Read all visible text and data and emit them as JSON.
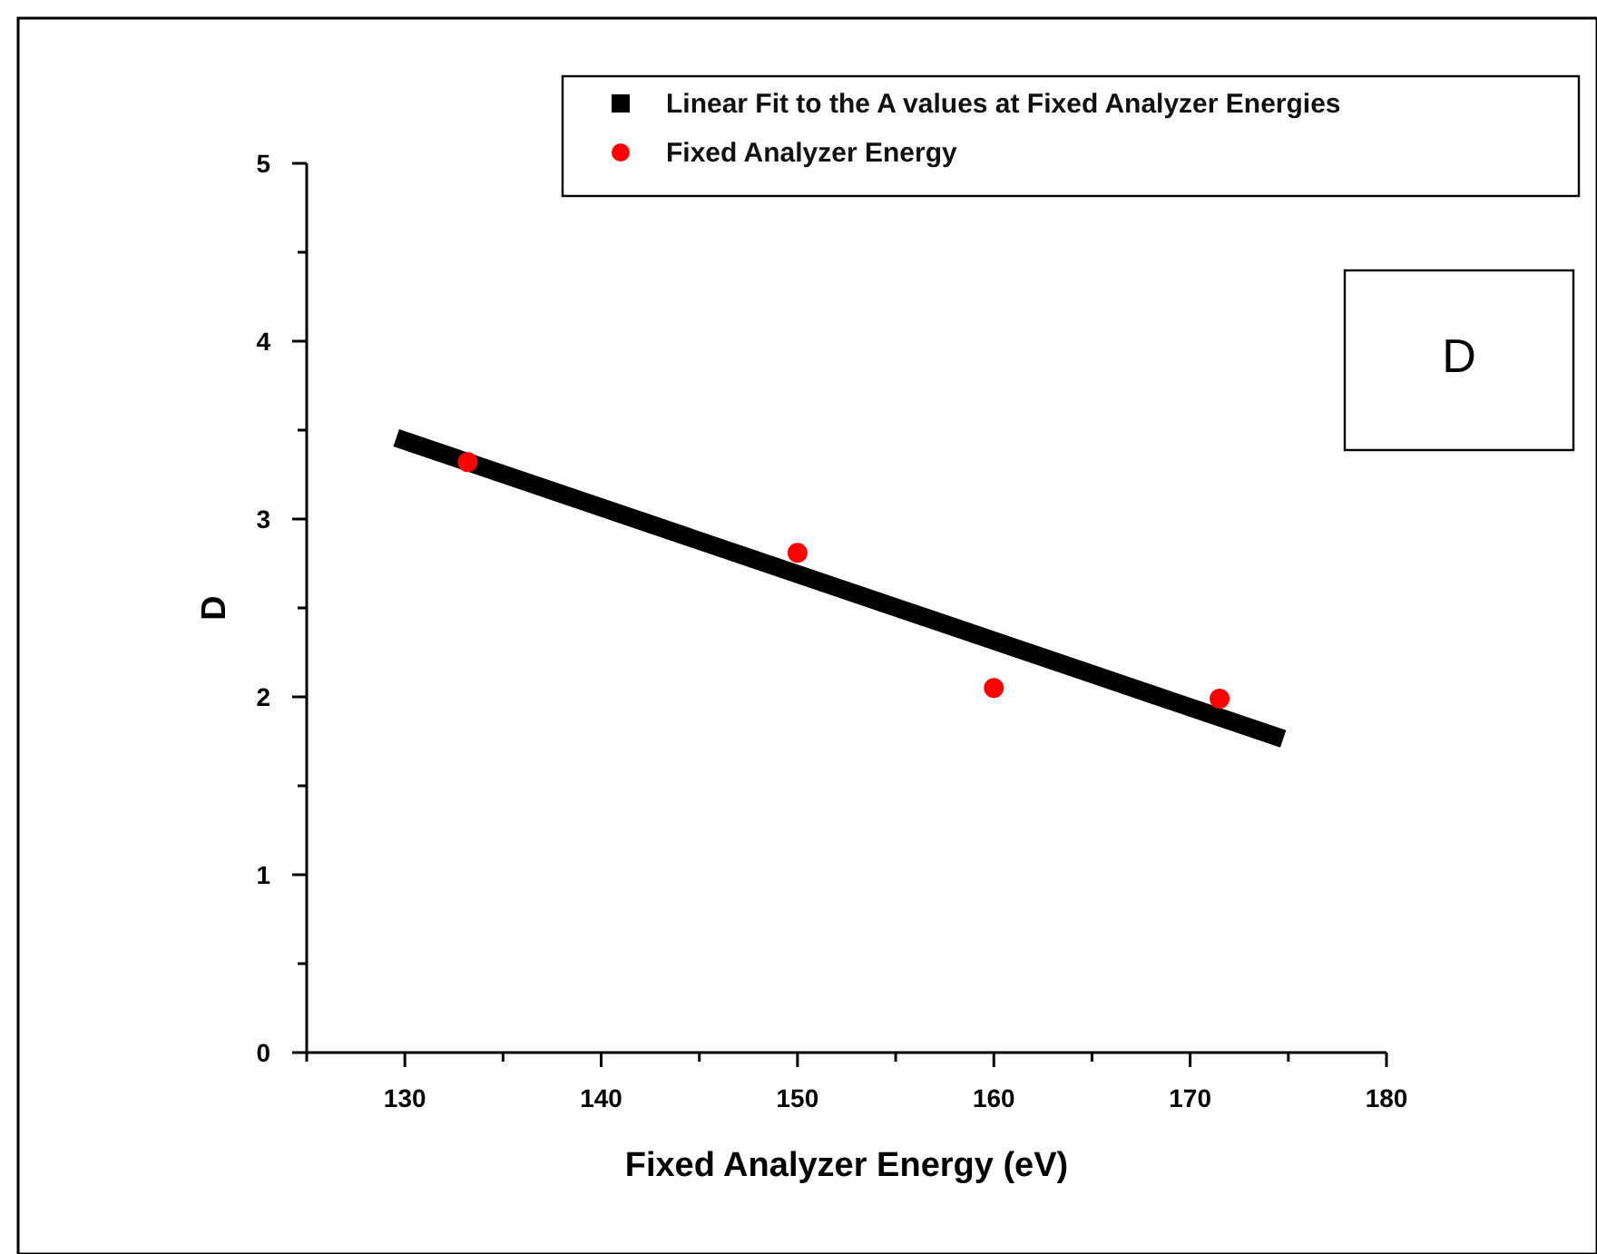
{
  "chart_data": {
    "type": "scatter",
    "xlabel": "Fixed Analyzer Energy (eV)",
    "ylabel": "D",
    "annotations": [
      "D"
    ],
    "xlim": [
      125,
      180
    ],
    "xticks": [
      {
        "value": 125,
        "label": null
      },
      130,
      {
        "value": 135,
        "label": null
      },
      140,
      {
        "value": 145,
        "label": null
      },
      150,
      {
        "value": 155,
        "label": null
      },
      160,
      {
        "value": 165,
        "label": null
      },
      170,
      {
        "value": 175,
        "label": null
      },
      180
    ],
    "ylim": [
      0,
      5
    ],
    "yticks": [
      0,
      {
        "value": 0.5,
        "label": null
      },
      1,
      {
        "value": 1.5,
        "label": null
      },
      2,
      {
        "value": 2.5,
        "label": null
      },
      3,
      {
        "value": 3.5,
        "label": null
      },
      4,
      {
        "value": 4.5,
        "label": null
      },
      5
    ],
    "legend": "top right",
    "grid": false,
    "series": [
      {
        "name": "Linear Fit to the A values at Fixed Analyzer Energies",
        "type": "line",
        "color": "#000000",
        "x": [
          130,
          174.3
        ],
        "values": [
          3.44,
          1.78
        ]
      },
      {
        "name": "Fixed Analyzer Energy",
        "marker": "circle",
        "color": "#ff0000",
        "x": [
          133.2,
          150,
          160,
          171.5
        ],
        "values": [
          3.32,
          2.81,
          2.05,
          1.99
        ]
      }
    ]
  }
}
